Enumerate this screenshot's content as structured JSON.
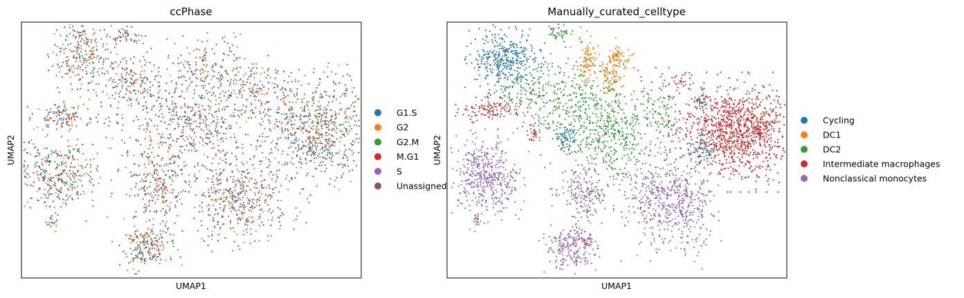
{
  "chart_data": [
    {
      "type": "scatter",
      "title": "ccPhase",
      "xlabel": "UMAP1",
      "ylabel": "UMAP2",
      "xticks": [],
      "yticks": [],
      "legend_placement": "right",
      "series": [
        {
          "name": "G1.S",
          "color": "#1f77b4"
        },
        {
          "name": "G2",
          "color": "#ff7f0e"
        },
        {
          "name": "G2.M",
          "color": "#2ca02c"
        },
        {
          "name": "M.G1",
          "color": "#d62728"
        },
        {
          "name": "S",
          "color": "#9467bd"
        },
        {
          "name": "Unassigned",
          "color": "#8c564b"
        }
      ],
      "clusters": [
        {
          "cx": 0.18,
          "cy": 0.88,
          "sx": 0.045,
          "sy": 0.07,
          "n": 260
        },
        {
          "cx": 0.315,
          "cy": 0.95,
          "sx": 0.02,
          "sy": 0.02,
          "n": 40
        },
        {
          "cx": 0.12,
          "cy": 0.63,
          "sx": 0.04,
          "sy": 0.025,
          "n": 120
        },
        {
          "cx": 0.33,
          "cy": 0.76,
          "sx": 0.07,
          "sy": 0.06,
          "n": 220
        },
        {
          "cx": 0.55,
          "cy": 0.82,
          "sx": 0.05,
          "sy": 0.07,
          "n": 170
        },
        {
          "cx": 0.52,
          "cy": 0.6,
          "sx": 0.08,
          "sy": 0.07,
          "n": 300
        },
        {
          "cx": 0.7,
          "cy": 0.74,
          "sx": 0.06,
          "sy": 0.05,
          "n": 150
        },
        {
          "cx": 0.87,
          "cy": 0.58,
          "sx": 0.085,
          "sy": 0.1,
          "n": 720
        },
        {
          "cx": 0.11,
          "cy": 0.4,
          "sx": 0.06,
          "sy": 0.07,
          "n": 360
        },
        {
          "cx": 0.4,
          "cy": 0.35,
          "sx": 0.04,
          "sy": 0.07,
          "n": 220
        },
        {
          "cx": 0.6,
          "cy": 0.33,
          "sx": 0.05,
          "sy": 0.09,
          "n": 290
        },
        {
          "cx": 0.7,
          "cy": 0.3,
          "sx": 0.06,
          "sy": 0.08,
          "n": 200
        },
        {
          "cx": 0.37,
          "cy": 0.12,
          "sx": 0.04,
          "sy": 0.04,
          "n": 200
        },
        {
          "cx": 0.09,
          "cy": 0.22,
          "sx": 0.01,
          "sy": 0.015,
          "n": 20
        },
        {
          "cx": 0.4,
          "cy": 0.55,
          "sx": 0.1,
          "sy": 0.12,
          "n": 180
        }
      ]
    },
    {
      "type": "scatter",
      "title": "Manually_curated_celltype",
      "xlabel": "UMAP1",
      "ylabel": "UMAP2",
      "xticks": [],
      "yticks": [],
      "legend_placement": "right",
      "series": [
        {
          "name": "Cycling",
          "color": "#1f77b4"
        },
        {
          "name": "DC1",
          "color": "#ff7f0e"
        },
        {
          "name": "DC2",
          "color": "#2ca02c"
        },
        {
          "name": "Intermediate macrophages",
          "color": "#d62728"
        },
        {
          "name": "Nonclassical monocytes",
          "color": "#9467bd"
        }
      ],
      "clusters": [
        {
          "cx": 0.17,
          "cy": 0.86,
          "sx": 0.045,
          "sy": 0.06,
          "n": 380,
          "series": 0
        },
        {
          "cx": 0.35,
          "cy": 0.55,
          "sx": 0.015,
          "sy": 0.025,
          "n": 60,
          "series": 0
        },
        {
          "cx": 0.75,
          "cy": 0.5,
          "sx": 0.025,
          "sy": 0.03,
          "n": 70,
          "series": 0
        },
        {
          "cx": 0.75,
          "cy": 0.69,
          "sx": 0.01,
          "sy": 0.015,
          "n": 30,
          "series": 0
        },
        {
          "cx": 0.415,
          "cy": 0.85,
          "sx": 0.015,
          "sy": 0.05,
          "n": 80,
          "series": 1
        },
        {
          "cx": 0.48,
          "cy": 0.78,
          "sx": 0.015,
          "sy": 0.035,
          "n": 70,
          "series": 1
        },
        {
          "cx": 0.5,
          "cy": 0.86,
          "sx": 0.02,
          "sy": 0.03,
          "n": 70,
          "series": 1
        },
        {
          "cx": 0.3,
          "cy": 0.72,
          "sx": 0.08,
          "sy": 0.07,
          "n": 300,
          "series": 2
        },
        {
          "cx": 0.48,
          "cy": 0.57,
          "sx": 0.08,
          "sy": 0.1,
          "n": 520,
          "series": 2
        },
        {
          "cx": 0.33,
          "cy": 0.96,
          "sx": 0.015,
          "sy": 0.015,
          "n": 40,
          "series": 2
        },
        {
          "cx": 0.63,
          "cy": 0.63,
          "sx": 0.03,
          "sy": 0.05,
          "n": 70,
          "series": 2
        },
        {
          "cx": 0.86,
          "cy": 0.57,
          "sx": 0.08,
          "sy": 0.09,
          "n": 1100,
          "series": 3
        },
        {
          "cx": 0.12,
          "cy": 0.66,
          "sx": 0.045,
          "sy": 0.02,
          "n": 110,
          "series": 3
        },
        {
          "cx": 0.25,
          "cy": 0.56,
          "sx": 0.01,
          "sy": 0.02,
          "n": 25,
          "series": 3
        },
        {
          "cx": 0.68,
          "cy": 0.77,
          "sx": 0.03,
          "sy": 0.025,
          "n": 40,
          "series": 3
        },
        {
          "cx": 0.41,
          "cy": 0.15,
          "sx": 0.012,
          "sy": 0.02,
          "n": 20,
          "series": 3
        },
        {
          "cx": 0.11,
          "cy": 0.4,
          "sx": 0.05,
          "sy": 0.07,
          "n": 440,
          "series": 4
        },
        {
          "cx": 0.4,
          "cy": 0.33,
          "sx": 0.035,
          "sy": 0.05,
          "n": 180,
          "series": 4
        },
        {
          "cx": 0.36,
          "cy": 0.12,
          "sx": 0.035,
          "sy": 0.04,
          "n": 200,
          "series": 4
        },
        {
          "cx": 0.62,
          "cy": 0.3,
          "sx": 0.05,
          "sy": 0.09,
          "n": 330,
          "series": 4
        },
        {
          "cx": 0.71,
          "cy": 0.27,
          "sx": 0.04,
          "sy": 0.09,
          "n": 220,
          "series": 4
        },
        {
          "cx": 0.09,
          "cy": 0.22,
          "sx": 0.01,
          "sy": 0.015,
          "n": 25,
          "series": 4
        }
      ]
    }
  ]
}
